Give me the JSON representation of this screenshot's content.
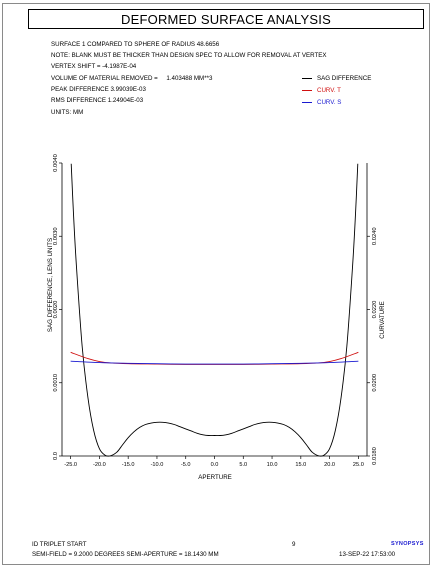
{
  "title": "DEFORMED SURFACE ANALYSIS",
  "info": {
    "surface": "SURFACE   1 COMPARED TO SPHERE OF RADIUS   48.6656",
    "note": "NOTE: BLANK MUST BE THICKER THAN DESIGN SPEC TO ALLOW FOR REMOVAL AT VERTEX",
    "vertex_shift": "VERTEX SHIFT = -4.1987E-04",
    "volume_label": "VOLUME OF MATERIAL REMOVED =",
    "volume_value": "1.403488 MM**3",
    "peak": "PEAK DIFFERENCE  3.99039E-03",
    "rms": "RMS DIFFERENCE   1.24904E-03",
    "units": "UNITS: MM"
  },
  "legend": [
    {
      "label": "SAG DIFFERENCE",
      "color": "#000000"
    },
    {
      "label": "CURV. T",
      "color": "#d01010"
    },
    {
      "label": "CURV. S",
      "color": "#1a1ad0"
    }
  ],
  "footer": {
    "name": "ID TRIPLET START",
    "page": "9",
    "semifield": "SEMI-FIELD =   9.2000 DEGREES   SEMI-APERTURE =  18.1430 MM",
    "date": "13-SEP-22  17:53:00",
    "logo": "SYNOPSYS"
  },
  "chart_data": {
    "type": "line",
    "xlabel": "APERTURE",
    "ylabel": "SAG DIFFERENCE, LENS UNITS",
    "y2label": "CURVATURE",
    "xlim": [
      -26.5,
      26.5
    ],
    "ylim": [
      0,
      0.004
    ],
    "y2lim": [
      0.018,
      0.026
    ],
    "xticks": [
      -25,
      -20,
      -15,
      -10,
      -5,
      0,
      5,
      10,
      15,
      20,
      25
    ],
    "xtick_labels": [
      "-25.0",
      "-20.0",
      "-15.0",
      "-10.0",
      "-5.0",
      "0.0",
      "5.0",
      "10.0",
      "15.0",
      "20.0",
      "25.0"
    ],
    "yticks": [
      0,
      0.001,
      0.002,
      0.003,
      0.004
    ],
    "ytick_labels": [
      "0.0",
      "0.0010",
      "0.0020",
      "0.0030",
      "0.0040"
    ],
    "y2ticks": [
      0.018,
      0.02,
      0.022,
      0.024
    ],
    "y2tick_labels": [
      "0.0180",
      "0.0200",
      "0.0220",
      "0.0240"
    ],
    "grid": false,
    "series": [
      {
        "name": "SAG DIFFERENCE",
        "axis": "left",
        "color": "#000000",
        "x": [
          -24.9,
          -24.5,
          -24.0,
          -23.0,
          -22.0,
          -21.0,
          -20.0,
          -19.0,
          -18.2,
          -17.0,
          -16.0,
          -15.0,
          -14.0,
          -13.0,
          -12.0,
          -11.0,
          -10.0,
          -9.0,
          -8.0,
          -7.0,
          -6.0,
          -5.0,
          -4.0,
          -3.0,
          -2.0,
          -1.0,
          0.0,
          1.0,
          2.0,
          3.0,
          4.0,
          5.0,
          6.0,
          7.0,
          8.0,
          9.0,
          10.0,
          11.0,
          12.0,
          13.0,
          14.0,
          15.0,
          16.0,
          17.0,
          18.2,
          19.0,
          20.0,
          21.0,
          22.0,
          23.0,
          24.0,
          24.5,
          24.9
        ],
        "y": [
          0.00399,
          0.0033,
          0.0026,
          0.0015,
          0.0008,
          0.00035,
          0.0001,
          1e-05,
          0.0,
          5e-05,
          0.00015,
          0.00025,
          0.00033,
          0.00039,
          0.00043,
          0.00045,
          0.00046,
          0.00046,
          0.00045,
          0.00043,
          0.0004,
          0.00037,
          0.00034,
          0.00031,
          0.00029,
          0.00028,
          0.00028,
          0.00028,
          0.00029,
          0.00031,
          0.00034,
          0.00037,
          0.0004,
          0.00043,
          0.00045,
          0.00046,
          0.00046,
          0.00045,
          0.00043,
          0.00039,
          0.00033,
          0.00025,
          0.00015,
          5e-05,
          0.0,
          1e-05,
          0.0001,
          0.00035,
          0.0008,
          0.0015,
          0.0026,
          0.0033,
          0.00399
        ]
      },
      {
        "name": "CURV. T",
        "axis": "right",
        "color": "#d01010",
        "x": [
          -25,
          -22,
          -20,
          -18,
          -15,
          -10,
          -5,
          0,
          5,
          10,
          15,
          18,
          20,
          22,
          25
        ],
        "y": [
          0.02083,
          0.02066,
          0.02058,
          0.02054,
          0.02052,
          0.02051,
          0.0205,
          0.0205,
          0.0205,
          0.02051,
          0.02052,
          0.02054,
          0.02058,
          0.02066,
          0.02083
        ]
      },
      {
        "name": "CURV. S",
        "axis": "right",
        "color": "#1a1ad0",
        "x": [
          -25,
          -20,
          -15,
          -10,
          -5,
          0,
          5,
          10,
          15,
          20,
          25
        ],
        "y": [
          0.02059,
          0.02055,
          0.02053,
          0.02052,
          0.02051,
          0.02051,
          0.02051,
          0.02052,
          0.02053,
          0.02055,
          0.02059
        ]
      }
    ]
  }
}
